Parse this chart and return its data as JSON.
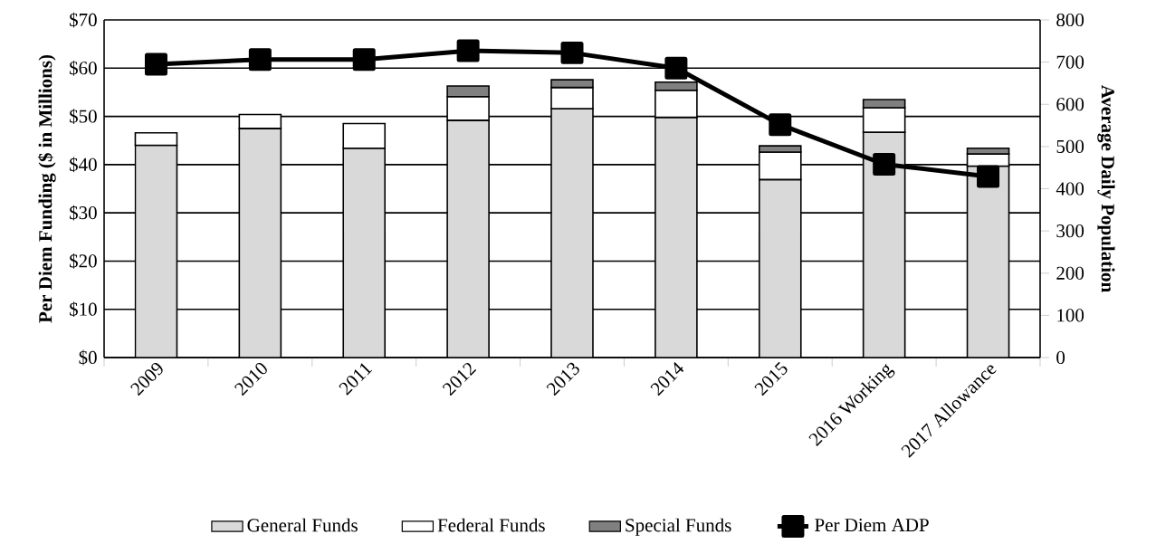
{
  "chart_data": {
    "type": "bar",
    "stacked": true,
    "categories": [
      "2009",
      "2010",
      "2011",
      "2012",
      "2013",
      "2014",
      "2015",
      "2016 Working",
      "2017 Allowance"
    ],
    "ylabel": "Per Diem Funding ($ in Millions)",
    "y2label": "Average Daily Population",
    "ylim": [
      0,
      70
    ],
    "yticks": [
      {
        "value": 0,
        "label": "$0"
      },
      {
        "value": 10,
        "label": "$10"
      },
      {
        "value": 20,
        "label": "$20"
      },
      {
        "value": 30,
        "label": "$30"
      },
      {
        "value": 40,
        "label": "$40"
      },
      {
        "value": 50,
        "label": "$50"
      },
      {
        "value": 60,
        "label": "$60"
      },
      {
        "value": 70,
        "label": "$70"
      }
    ],
    "y2lim": [
      0,
      800
    ],
    "y2ticks": [
      0,
      100,
      200,
      300,
      400,
      500,
      600,
      700,
      800
    ],
    "grid": "y",
    "legend": "bottom",
    "series": [
      {
        "name": "General Funds",
        "color": "#d9d9d9",
        "values": [
          44.0,
          47.5,
          43.4,
          49.2,
          51.6,
          49.8,
          36.9,
          46.7,
          39.7
        ]
      },
      {
        "name": "Federal Funds",
        "color": "#ffffff",
        "values": [
          2.6,
          2.9,
          5.1,
          4.9,
          4.4,
          5.6,
          5.7,
          5.1,
          2.5
        ]
      },
      {
        "name": "Special Funds",
        "color": "#808080",
        "values": [
          null,
          null,
          null,
          2.2,
          1.6,
          1.7,
          1.3,
          1.7,
          1.2
        ]
      },
      {
        "name": "Per Diem ADP",
        "type": "line",
        "axis": "y2",
        "color": "#000000",
        "marker": "square",
        "values": [
          695,
          706,
          706,
          727,
          722,
          686,
          552,
          458,
          429
        ]
      }
    ]
  }
}
